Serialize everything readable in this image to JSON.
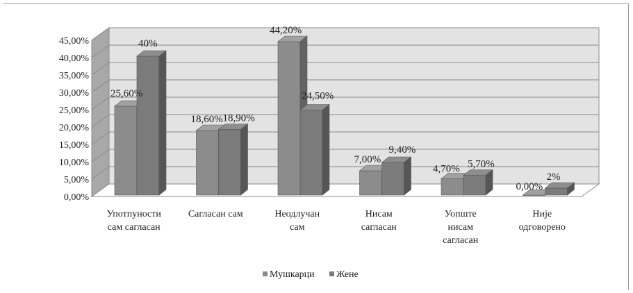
{
  "chart_data": {
    "type": "bar",
    "title": "",
    "xlabel": "",
    "ylabel": "",
    "ylim": [
      0,
      45
    ],
    "y_ticks": [
      "0,00%",
      "5,00%",
      "10,00%",
      "15,00%",
      "20,00%",
      "25,00%",
      "30,00%",
      "35,00%",
      "40,00%",
      "45,00%"
    ],
    "categories": [
      [
        "Употпуности",
        "сам сагласан"
      ],
      [
        "Сагласан сам"
      ],
      [
        "Неодлучан",
        "сам"
      ],
      [
        "Нисам",
        "сагласан"
      ],
      [
        "Уопште",
        "нисам",
        "сагласан"
      ],
      [
        "Није",
        "одговорено"
      ]
    ],
    "series": [
      {
        "name": "Мушкарци",
        "values": [
          25.6,
          18.6,
          44.2,
          7.0,
          4.7,
          0.0
        ],
        "labels": [
          "25,60%",
          "18,60%",
          "44,20%",
          "7,00%",
          "4,70%",
          "0,00%"
        ]
      },
      {
        "name": "Жене",
        "values": [
          40,
          18.9,
          24.5,
          9.4,
          5.7,
          2
        ],
        "labels": [
          "40%",
          "18,90%",
          "24,50%",
          "9,40%",
          "5,70%",
          "2%"
        ]
      }
    ],
    "grid": true,
    "legend_position": "bottom",
    "three_d": true,
    "colors": {
      "series1": "#8c8c8c",
      "series2": "#7b7b7b",
      "wall": "#e3e3e3",
      "side_wall": "#a8a8a8"
    }
  }
}
